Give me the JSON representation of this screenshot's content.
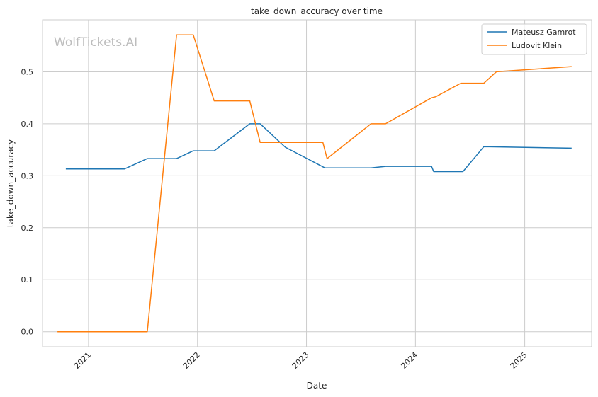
{
  "chart_data": {
    "type": "line",
    "title": "take_down_accuracy over time",
    "xlabel": "Date",
    "ylabel": "take_down_accuracy",
    "watermark": "WolfTickets.AI",
    "x_ticks": [
      "2021",
      "2022",
      "2023",
      "2024",
      "2025"
    ],
    "y_ticks": [
      "0.0",
      "0.1",
      "0.2",
      "0.3",
      "0.4",
      "0.5"
    ],
    "ylim": [
      -0.029,
      0.6
    ],
    "xlim": [
      "2020-07-31",
      "2025-08-13"
    ],
    "grid": true,
    "legend_position": "top-right",
    "series": [
      {
        "name": "Mateusz Gamrot",
        "color": "#1f77b4",
        "points": [
          [
            "2020-10-17",
            0.313
          ],
          [
            "2021-05-01",
            0.313
          ],
          [
            "2021-07-17",
            0.333
          ],
          [
            "2021-10-23",
            0.333
          ],
          [
            "2021-12-18",
            0.348
          ],
          [
            "2022-02-26",
            0.348
          ],
          [
            "2022-06-25",
            0.4
          ],
          [
            "2022-07-30",
            0.4
          ],
          [
            "2022-10-22",
            0.355
          ],
          [
            "2023-03-04",
            0.315
          ],
          [
            "2023-08-05",
            0.315
          ],
          [
            "2023-09-23",
            0.318
          ],
          [
            "2024-02-24",
            0.318
          ],
          [
            "2024-03-02",
            0.308
          ],
          [
            "2024-06-08",
            0.308
          ],
          [
            "2024-08-17",
            0.356
          ],
          [
            "2025-06-07",
            0.353
          ]
        ]
      },
      {
        "name": "Ludovit Klein",
        "color": "#ff7f0e",
        "points": [
          [
            "2020-09-19",
            0.0
          ],
          [
            "2021-07-17",
            0.0
          ],
          [
            "2021-10-23",
            0.571
          ],
          [
            "2021-12-18",
            0.571
          ],
          [
            "2022-02-26",
            0.444
          ],
          [
            "2022-06-25",
            0.444
          ],
          [
            "2022-07-30",
            0.364
          ],
          [
            "2023-02-25",
            0.364
          ],
          [
            "2023-03-11",
            0.333
          ],
          [
            "2023-08-05",
            0.4
          ],
          [
            "2023-09-23",
            0.4
          ],
          [
            "2024-02-24",
            0.45
          ],
          [
            "2024-03-09",
            0.452
          ],
          [
            "2024-06-01",
            0.478
          ],
          [
            "2024-08-17",
            0.478
          ],
          [
            "2024-09-28",
            0.5
          ],
          [
            "2025-06-07",
            0.51
          ]
        ]
      }
    ]
  }
}
